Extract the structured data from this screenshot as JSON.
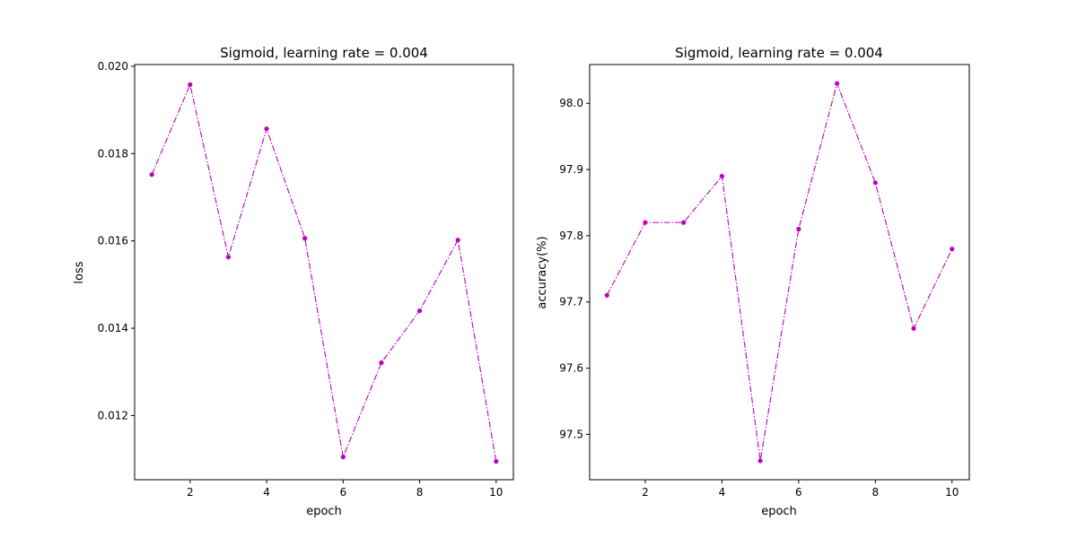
{
  "chart_data": [
    {
      "type": "line",
      "title": "Sigmoid, learning rate = 0.004",
      "xlabel": "epoch",
      "ylabel": "loss",
      "x": [
        1,
        2,
        3,
        4,
        5,
        6,
        7,
        8,
        9,
        10
      ],
      "series": [
        {
          "values": [
            0.01752,
            0.01958,
            0.01563,
            0.01857,
            0.01606,
            0.01105,
            0.01321,
            0.0144,
            0.01602,
            0.01095
          ],
          "color": "#bf00bf",
          "line_style": "dash-dot",
          "marker": "dot"
        }
      ],
      "xlim": [
        0.55,
        10.45
      ],
      "ylim": [
        0.01053,
        0.02004
      ],
      "xticks": [
        2,
        4,
        6,
        8,
        10
      ],
      "xtick_labels": [
        "2",
        "4",
        "6",
        "8",
        "10"
      ],
      "yticks": [
        0.012,
        0.014,
        0.016,
        0.018,
        0.02
      ],
      "ytick_labels": [
        "0.012",
        "0.014",
        "0.016",
        "0.018",
        "0.020"
      ],
      "grid": false,
      "legend": "none"
    },
    {
      "type": "line",
      "title": "Sigmoid, learning rate = 0.004",
      "xlabel": "epoch",
      "ylabel": "accuracy(%)",
      "x": [
        1,
        2,
        3,
        4,
        5,
        6,
        7,
        8,
        9,
        10
      ],
      "series": [
        {
          "values": [
            97.71,
            97.82,
            97.82,
            97.89,
            97.46,
            97.81,
            98.03,
            97.88,
            97.66,
            97.78
          ],
          "color": "#bf00bf",
          "line_style": "dash-dot",
          "marker": "dot"
        }
      ],
      "xlim": [
        0.55,
        10.45
      ],
      "ylim": [
        97.4315,
        98.0585
      ],
      "xticks": [
        2,
        4,
        6,
        8,
        10
      ],
      "xtick_labels": [
        "2",
        "4",
        "6",
        "8",
        "10"
      ],
      "yticks": [
        97.5,
        97.6,
        97.7,
        97.8,
        97.9,
        98.0
      ],
      "ytick_labels": [
        "97.5",
        "97.6",
        "97.7",
        "97.8",
        "97.9",
        "98.0"
      ],
      "grid": false,
      "legend": "none"
    }
  ]
}
